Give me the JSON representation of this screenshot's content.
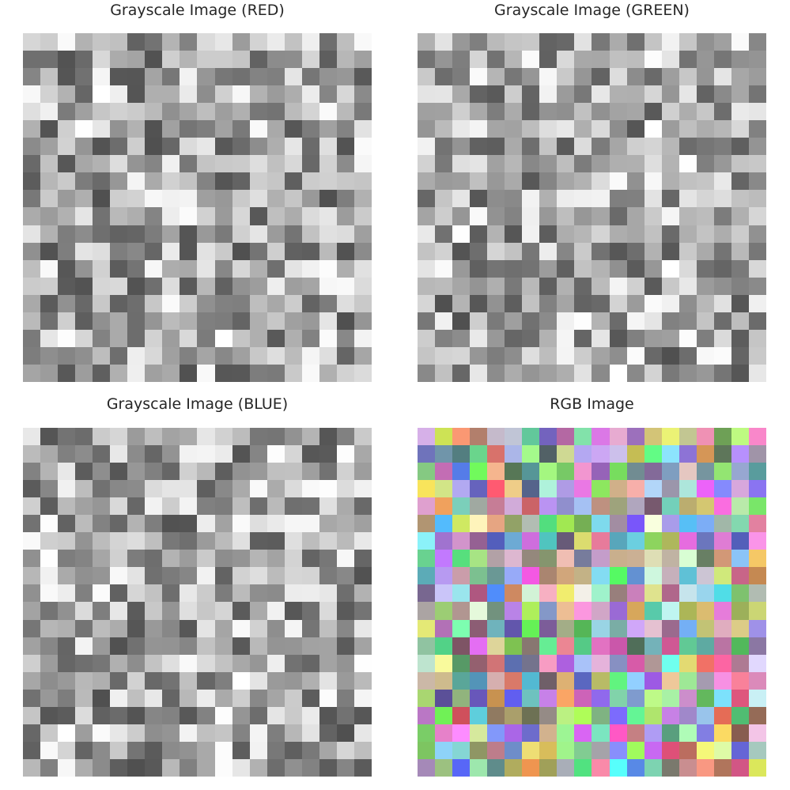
{
  "panels": [
    {
      "title": "Grayscale Image (RED)",
      "channel": "red"
    },
    {
      "title": "Grayscale Image (GREEN)",
      "channel": "green"
    },
    {
      "title": "Grayscale Image (BLUE)",
      "channel": "blue"
    },
    {
      "title": "RGB Image",
      "channel": "rgb"
    }
  ],
  "grid": {
    "rows": 20,
    "cols": 20,
    "seed": 19
  },
  "palette": {
    "background": "#ffffff",
    "title": "#262626"
  }
}
